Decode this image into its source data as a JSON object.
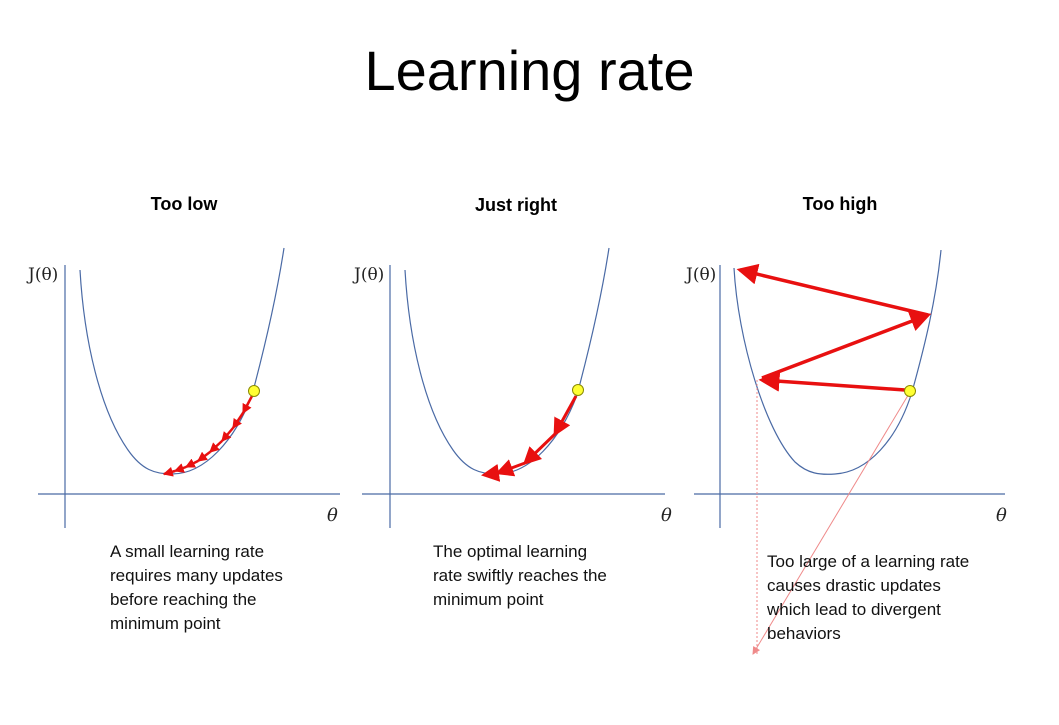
{
  "title": "Learning rate",
  "panels": [
    {
      "id": "low",
      "heading": "Too low",
      "ylabel": "J(θ)",
      "xlabel": "θ",
      "caption": "A small learning rate\nrequires many updates\nbefore reaching the\nminimum point"
    },
    {
      "id": "right",
      "heading": "Just right",
      "ylabel": "J(θ)",
      "xlabel": "θ",
      "caption": "The optimal learning\nrate swiftly reaches the\nminimum point"
    },
    {
      "id": "high",
      "heading": "Too high",
      "ylabel": "J(θ)",
      "xlabel": "θ",
      "caption": "Too large of a learning rate\ncauses drastic updates\nwhich lead to divergent\nbehaviors"
    }
  ],
  "colors": {
    "curve": "#4a6aa5",
    "axis": "#4a6aa5",
    "step_arrow": "#e81010",
    "start_point": "#ffff33",
    "divergence_line": "#ef8a8a"
  }
}
